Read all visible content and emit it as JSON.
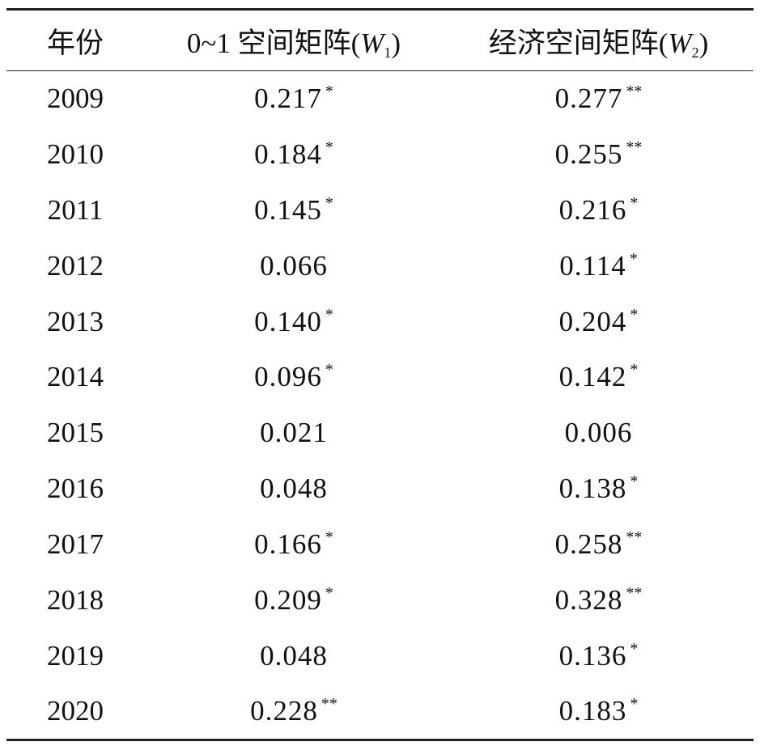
{
  "table": {
    "header": [
      [
        "年份"
      ],
      [
        "0~1 空间矩阵(",
        "W",
        "1",
        ")"
      ],
      [
        "经济空间矩阵(",
        "W",
        "2",
        ")"
      ]
    ],
    "rows": [
      [
        "2009",
        {
          "value": "0.217",
          "sig": "*"
        },
        {
          "value": "0.277",
          "sig": "**"
        }
      ],
      [
        "2010",
        {
          "value": "0.184",
          "sig": "*"
        },
        {
          "value": "0.255",
          "sig": "**"
        }
      ],
      [
        "2011",
        {
          "value": "0.145",
          "sig": "*"
        },
        {
          "value": "0.216",
          "sig": "*"
        }
      ],
      [
        "2012",
        {
          "value": "0.066"
        },
        {
          "value": "0.114",
          "sig": "*"
        }
      ],
      [
        "2013",
        {
          "value": "0.140",
          "sig": "*"
        },
        {
          "value": "0.204",
          "sig": "*"
        }
      ],
      [
        "2014",
        {
          "value": "0.096",
          "sig": "*"
        },
        {
          "value": "0.142",
          "sig": "*"
        }
      ],
      [
        "2015",
        {
          "value": "0.021"
        },
        {
          "value": "0.006"
        }
      ],
      [
        "2016",
        {
          "value": "0.048"
        },
        {
          "value": "0.138",
          "sig": "*"
        }
      ],
      [
        "2017",
        {
          "value": "0.166",
          "sig": "*"
        },
        {
          "value": "0.258",
          "sig": "**"
        }
      ],
      [
        "2018",
        {
          "value": "0.209",
          "sig": "*"
        },
        {
          "value": "0.328",
          "sig": "**"
        }
      ],
      [
        "2019",
        {
          "value": "0.048"
        },
        {
          "value": "0.136",
          "sig": "*"
        }
      ],
      [
        "2020",
        {
          "value": "0.228",
          "sig": "**"
        },
        {
          "value": "0.183",
          "sig": "*"
        }
      ]
    ]
  }
}
